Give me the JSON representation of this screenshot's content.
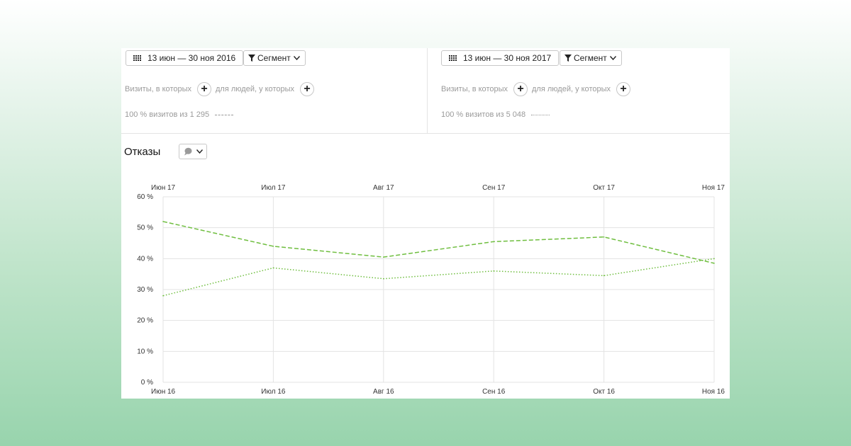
{
  "comparison": {
    "left": {
      "date_range": "13 июн — 30 ноя 2016",
      "segment_label": "Сегмент",
      "visits_condition": "Визиты, в которых",
      "people_condition": "для людей, у которых",
      "visits_summary": "100 % визитов из 1 295",
      "line_style": "dashed"
    },
    "right": {
      "date_range": "13 июн — 30 ноя 2017",
      "segment_label": "Сегмент",
      "visits_condition": "Визиты, в которых",
      "people_condition": "для людей, у которых",
      "visits_summary": "100 % визитов из 5 048",
      "line_style": "dotted"
    }
  },
  "metric": {
    "title": "Отказы",
    "chart_type_icon": "speech-bubble-icon"
  },
  "colors": {
    "line": "#6fbe3f",
    "grid": "#e3e3e3"
  },
  "chart_data": {
    "type": "line",
    "x_top": [
      "Июн 17",
      "Июл 17",
      "Авг 17",
      "Сен 17",
      "Окт 17",
      "Ноя 17"
    ],
    "x_bottom": [
      "Июн 16",
      "Июл 16",
      "Авг 16",
      "Сен 16",
      "Окт 16",
      "Ноя 16"
    ],
    "yticks": [
      "0 %",
      "10 %",
      "20 %",
      "30 %",
      "40 %",
      "50 %",
      "60 %"
    ],
    "ylim": [
      0,
      60
    ],
    "grid": true,
    "series": [
      {
        "style": "dashed",
        "values": [
          52.0,
          44.0,
          40.5,
          45.5,
          47.0,
          38.5
        ]
      },
      {
        "style": "dotted",
        "values": [
          28.0,
          37.0,
          33.5,
          36.0,
          34.5,
          40.0
        ]
      }
    ]
  }
}
